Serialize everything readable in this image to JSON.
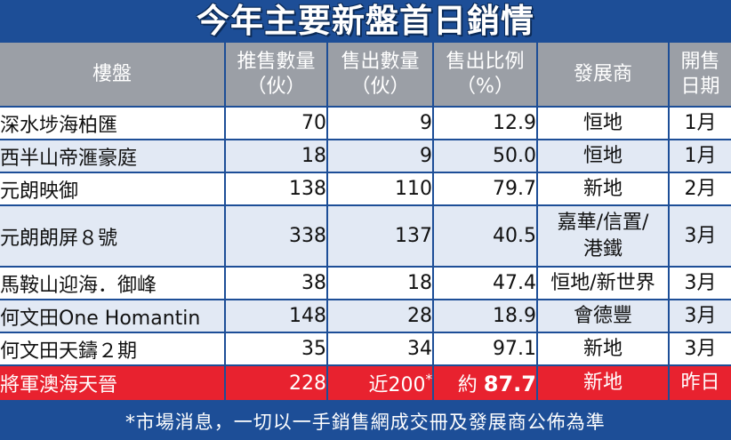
{
  "title": "今年主要新盤首日銷情",
  "headers": [
    {
      "l1": "樓盤",
      "l2": ""
    },
    {
      "l1": "推售數量",
      "l2": "（伙）"
    },
    {
      "l1": "售出數量",
      "l2": "（伙）"
    },
    {
      "l1": "售出比例",
      "l2": "（%）"
    },
    {
      "l1": "發展商",
      "l2": ""
    },
    {
      "l1": "開售",
      "l2": "日期"
    }
  ],
  "rows": [
    {
      "name": "深水埗海柏匯",
      "offered": "70",
      "sold": "9",
      "ratio": "12.9",
      "dev1": "恒地",
      "dev2": "",
      "date": "1月"
    },
    {
      "name": "西半山帝滙豪庭",
      "offered": "18",
      "sold": "9",
      "ratio": "50.0",
      "dev1": "恒地",
      "dev2": "",
      "date": "1月"
    },
    {
      "name": "元朗映御",
      "offered": "138",
      "sold": "110",
      "ratio": "79.7",
      "dev1": "新地",
      "dev2": "",
      "date": "2月"
    },
    {
      "name": "元朗朗屏８號",
      "offered": "338",
      "sold": "137",
      "ratio": "40.5",
      "dev1": "嘉華/信置/",
      "dev2": "港鐵",
      "date": "3月"
    },
    {
      "name": "馬鞍山迎海．御峰",
      "offered": "38",
      "sold": "18",
      "ratio": "47.4",
      "dev1": "恒地/新世界",
      "dev2": "",
      "date": "3月"
    },
    {
      "name": "何文田One Homantin",
      "offered": "148",
      "sold": "28",
      "ratio": "18.9",
      "dev1": "會德豐",
      "dev2": "",
      "date": "3月"
    },
    {
      "name": "何文田天鑄２期",
      "offered": "35",
      "sold": "34",
      "ratio": "97.1",
      "dev1": "新地",
      "dev2": "",
      "date": "3月"
    }
  ],
  "highlight": {
    "name": "將軍澳海天晉",
    "offered": "228",
    "sold_prefix": "近200",
    "sold_star": "*",
    "ratio_prefix": "約",
    "ratio_value": "87.7",
    "dev": "新地",
    "date": "昨日"
  },
  "colors": {
    "title_bg": "#1d4e97",
    "header_bg": "#9b9fa6",
    "alt_row": "#e2e9f4",
    "highlight": "#e8222f"
  },
  "footnote": "*市場消息，一切以一手銷售網成交冊及發展商公佈為準"
}
